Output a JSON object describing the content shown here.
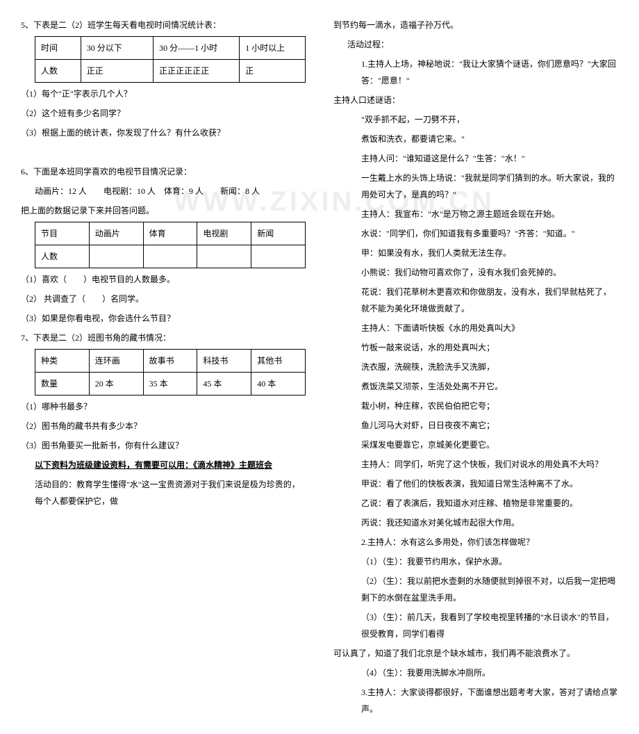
{
  "left": {
    "q5": {
      "title": "5、下表是二（2）班学生每天看电视时间情况统计表：",
      "table": {
        "rows": [
          [
            "时间",
            "30 分以下",
            "30 分——1 小时",
            "1 小时以上"
          ],
          [
            "人数",
            "正正",
            "正正正正正正",
            "正"
          ]
        ]
      },
      "sub1": "（1）每个\"正\"字表示几个人？",
      "sub2": "（2）这个班有多少名同学？",
      "sub3": "（3）根据上面的统计表，你发现了什么？有什么收获？"
    },
    "q6": {
      "title": "6、下面是本班同学喜欢的电视节目情况记录：",
      "record": "动画片：12 人　　电视剧：10 人　体育：9 人　　新闻：8 人",
      "prompt": "把上面的数据记录下来并回答问题。",
      "table": {
        "headers": [
          "节目",
          "动画片",
          "体育",
          "电视剧",
          "新闻"
        ],
        "row2": [
          "人数",
          "",
          "",
          "",
          ""
        ]
      },
      "sub1": "（1）喜欢（　　）电视节目的人数最多。",
      "sub2": "（2） 共调查了（　　）名同学。",
      "sub3": "（3）如果是你看电视，你会选什么节目？"
    },
    "q7": {
      "title": "7、下表是二（2）班图书角的藏书情况：",
      "table": {
        "r1": [
          "种类",
          "连环画",
          "故事书",
          "科技书",
          "其他书"
        ],
        "r2": [
          "数量",
          "20 本",
          "35 本",
          "45 本",
          "40 本"
        ]
      },
      "sub1": "（1）哪种书最多？",
      "sub2": "（2）图书角的藏书共有多少本？",
      "sub3": "（3）图书角要买一批新书，你有什么建议？"
    },
    "footer": {
      "bold": "以下资料为班级建设资料，有需要可以用：《滴水精神》主题班会",
      "line": "活动目的：教育学生懂得\"水\"这一宝贵资源对于我们来说是极为珍贵的，每个人都要保护它，做"
    }
  },
  "right": {
    "l1": "到节约每一滴水，造福子孙万代。",
    "l2": "活动过程：",
    "l3": "1.主持人上场，神秘地说：\"我让大家猜个谜语，你们愿意吗？\"大家回答：\"愿意！\"",
    "l4": "主持人口述谜语：",
    "l5": "\"双手抓不起，一刀劈不开，",
    "l6": "煮饭和洗衣，都要请它来。\"",
    "l7": "主持人问：\"谁知道这是什么？\"生答：\"水！\"",
    "l8": "一生戴上水的头饰上场说：\"我就是同学们猜到的水。听大家说，我的用处可大了，是真的吗？\"",
    "l9": "主持人：我宣布：\"水\"是万物之源主题班会现在开始。",
    "l10": "水说：\"同学们，你们知道我有多重要吗？\"齐答：\"知道。\"",
    "l11": "甲：如果没有水，我们人类就无法生存。",
    "l12": "小熊说：我们动物可喜欢你了，没有水我们会死掉的。",
    "l13": "花说：我们花草树木更喜欢和你做朋友，没有水，我们早就枯死了，就不能为美化环境做贡献了。",
    "l14": "主持人：下面请听快板《水的用处真叫大》",
    "l15": "竹板一敲来说话，水的用处真叫大；",
    "l16": "洗衣服，洗碗筷，洗脸洗手又洗脚，",
    "l17": "煮饭洗菜又沏茶，生活处处离不开它。",
    "l18": "栽小树，种庄稼，农民伯伯把它夸；",
    "l19": "鱼儿河马大对虾，日日夜夜不离它；",
    "l20": "采煤发电要靠它，京城美化更要它。",
    "l21": "主持人：同学们，听完了这个快板，我们对说水的用处真不大吗？",
    "l22": "甲说：看了他们的快板表演，我知道日常生活种离不了水。",
    "l23": "乙说：看了表演后，我知道水对庄稼、植物是非常重要的。",
    "l24": "丙说：我还知道水对美化城市起很大作用。",
    "l25": "2.主持人：水有这么多用处，你们该怎样做呢？",
    "l26": "（1）（生）：我要节约用水，保护水源。",
    "l27": "（2）（生）：我以前把水壶剩的水随便就到掉很不对，以后我一定把喝剩下的水倒在盆里洗手用。",
    "l28": "（3）（生）：前几天，我看到了学校电视里转播的\"水日谈水\"的节目，很受教育，同学们看得",
    "l29": "可认真了，知道了我们北京是个缺水城市，我们再不能浪费水了。",
    "l30": "（4）（生）：我要用洗脚水冲厕所。",
    "l31": "3.主持人：大家谈得都很好，下面谁想出题考考大家，答对了请给点掌声。"
  }
}
